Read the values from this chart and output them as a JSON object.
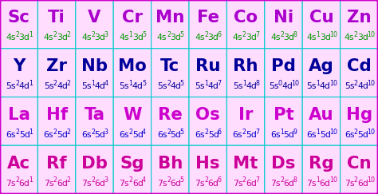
{
  "rows": [
    {
      "elements": [
        "Sc",
        "Ti",
        "V",
        "Cr",
        "Mn",
        "Fe",
        "Co",
        "Ni",
        "Cu",
        "Zn"
      ],
      "configs": [
        [
          "4s",
          "2",
          "3d",
          "1"
        ],
        [
          "4s",
          "2",
          "3d",
          "2"
        ],
        [
          "4s",
          "2",
          "3d",
          "3"
        ],
        [
          "4s",
          "1",
          "3d",
          "5"
        ],
        [
          "4s",
          "2",
          "3d",
          "5"
        ],
        [
          "4s",
          "2",
          "3d",
          "6"
        ],
        [
          "4s",
          "2",
          "3d",
          "7"
        ],
        [
          "4s",
          "2",
          "3d",
          "8"
        ],
        [
          "4s",
          "1",
          "3d",
          "10"
        ],
        [
          "4s",
          "2",
          "3d",
          "10"
        ]
      ],
      "sym_color": "#aa00cc",
      "cfg_color": "#009900"
    },
    {
      "elements": [
        "Y",
        "Zr",
        "Nb",
        "Mo",
        "Tc",
        "Ru",
        "Rh",
        "Pd",
        "Ag",
        "Cd"
      ],
      "configs": [
        [
          "5s",
          "2",
          "4d",
          "1"
        ],
        [
          "5s",
          "2",
          "4d",
          "2"
        ],
        [
          "5s",
          "1",
          "4d",
          "4"
        ],
        [
          "5s",
          "1",
          "4d",
          "5"
        ],
        [
          "5s",
          "2",
          "4d",
          "5"
        ],
        [
          "5s",
          "1",
          "4d",
          "7"
        ],
        [
          "5s",
          "1",
          "4d",
          "8"
        ],
        [
          "5s",
          "0",
          "4d",
          "10"
        ],
        [
          "5s",
          "1",
          "4d",
          "10"
        ],
        [
          "5s",
          "2",
          "4d",
          "10"
        ]
      ],
      "sym_color": "#000099",
      "cfg_color": "#000099"
    },
    {
      "elements": [
        "La",
        "Hf",
        "Ta",
        "W",
        "Re",
        "Os",
        "Ir",
        "Pt",
        "Au",
        "Hg"
      ],
      "configs": [
        [
          "6s",
          "2",
          "5d",
          "1"
        ],
        [
          "6s",
          "2",
          "5d",
          "2"
        ],
        [
          "6s",
          "2",
          "5d",
          "3"
        ],
        [
          "6s",
          "2",
          "5d",
          "4"
        ],
        [
          "6s",
          "2",
          "5d",
          "5"
        ],
        [
          "6s",
          "2",
          "5d",
          "6"
        ],
        [
          "6s",
          "2",
          "5d",
          "7"
        ],
        [
          "6s",
          "1",
          "5d",
          "9"
        ],
        [
          "6s",
          "1",
          "5d",
          "10"
        ],
        [
          "6s",
          "2",
          "5d",
          "10"
        ]
      ],
      "sym_color": "#cc00cc",
      "cfg_color": "#0000cc"
    },
    {
      "elements": [
        "Ac",
        "Rf",
        "Db",
        "Sg",
        "Bh",
        "Hs",
        "Mt",
        "Ds",
        "Rg",
        "Cn"
      ],
      "configs": [
        [
          "7s",
          "2",
          "6d",
          "1"
        ],
        [
          "7s",
          "2",
          "6d",
          "2"
        ],
        [
          "7s",
          "2",
          "6d",
          "3"
        ],
        [
          "7s",
          "2",
          "6d",
          "4"
        ],
        [
          "7s",
          "2",
          "6d",
          "5"
        ],
        [
          "7s",
          "2",
          "6d",
          "6"
        ],
        [
          "7s",
          "2",
          "6d",
          "7"
        ],
        [
          "7s",
          "2",
          "6d",
          "8"
        ],
        [
          "7s",
          "1",
          "6d",
          "10"
        ],
        [
          "7s",
          "2",
          "6d",
          "10"
        ]
      ],
      "sym_color": "#cc0099",
      "cfg_color": "#cc0099"
    }
  ],
  "bg_color": "#ffaaff",
  "border_outer_color": "#cc00cc",
  "border_inner_color": "#00cccc",
  "cell_bg": "#ffddff",
  "figsize": [
    4.74,
    2.43
  ],
  "dpi": 100
}
